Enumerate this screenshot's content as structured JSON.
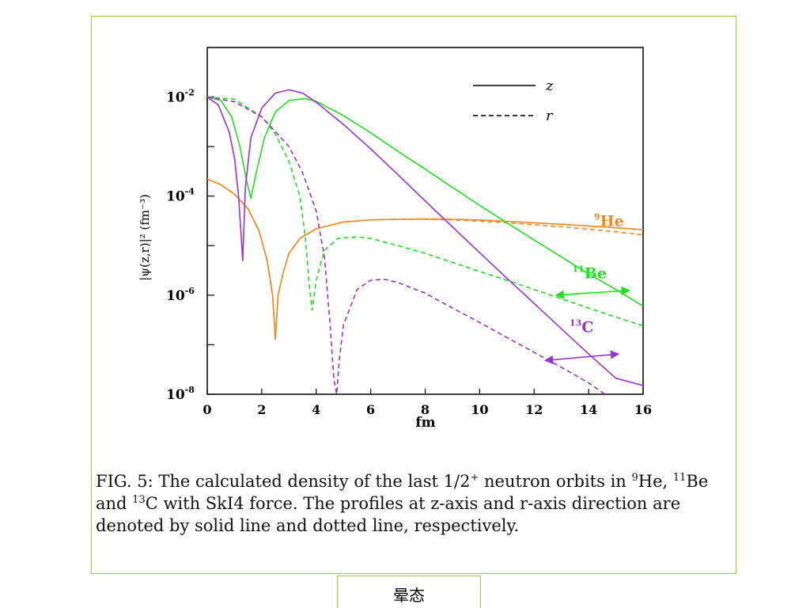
{
  "caption": {
    "prefix": "FIG. 5: The calculated density of the last 1/2",
    "sup_plus": "+",
    "mid1": " neutron orbits in ",
    "he_mass": "9",
    "he_el": "He, ",
    "be_mass": "11",
    "be_el": "Be and ",
    "c_mass": "13",
    "c_el": "C with SkI4 force. The profiles at z-axis and r-axis direction are denoted by solid line and dotted line, respectively."
  },
  "bottom_label": "晕态",
  "colors": {
    "He": "#ee8822",
    "Be": "#22dd22",
    "C": "#9933cc",
    "frame": "#99cc33"
  },
  "chart_data": {
    "type": "line",
    "xlabel": "fm",
    "ylabel": "|ψ(z,r)|² (fm⁻³)",
    "xlim": [
      0,
      16
    ],
    "ylim": [
      1e-08,
      0.1
    ],
    "yscale": "log",
    "xticks": [
      "0",
      "2",
      "4",
      "6",
      "8",
      "10",
      "12",
      "14",
      "16"
    ],
    "yticks": [
      {
        "base": "10",
        "exp": "-8",
        "value": 1e-08
      },
      {
        "base": "10",
        "exp": "-6",
        "value": 1e-06
      },
      {
        "base": "10",
        "exp": "-4",
        "value": 0.0001
      },
      {
        "base": "10",
        "exp": "-2",
        "value": 0.01
      }
    ],
    "legend": [
      {
        "label": "z",
        "style": "solid"
      },
      {
        "label": "r",
        "style": "dashed"
      }
    ],
    "legend_position": "top-right",
    "annotations": [
      {
        "mass": "9",
        "element": "He",
        "color": "He",
        "x": 14.2,
        "y": 2.5e-05
      },
      {
        "mass": "11",
        "element": "Be",
        "color": "Be",
        "x": 13.4,
        "y": 2.2e-06
      },
      {
        "mass": "13",
        "element": "C",
        "color": "C",
        "x": 13.3,
        "y": 1.8e-07
      }
    ],
    "arrows": [
      {
        "color": "Be",
        "x1": 12.8,
        "y1": 1e-06,
        "x2": 15.5,
        "y2": 1.25e-06
      },
      {
        "color": "C",
        "x1": 12.4,
        "y1": 4.8e-08,
        "x2": 15.1,
        "y2": 6.5e-08
      }
    ],
    "series": [
      {
        "color": "He",
        "style": "solid",
        "points": [
          [
            0,
            0.00022
          ],
          [
            0.5,
            0.00017
          ],
          [
            1.0,
            0.00011
          ],
          [
            1.5,
            5.5e-05
          ],
          [
            1.9,
            2e-05
          ],
          [
            2.2,
            5e-06
          ],
          [
            2.4,
            1e-06
          ],
          [
            2.5,
            1.3e-07
          ],
          [
            2.6,
            1e-06
          ],
          [
            2.8,
            3e-06
          ],
          [
            3.0,
            7e-06
          ],
          [
            3.4,
            1.4e-05
          ],
          [
            4.0,
            2.2e-05
          ],
          [
            5.0,
            3e-05
          ],
          [
            6.0,
            3.3e-05
          ],
          [
            7.0,
            3.4e-05
          ],
          [
            8.0,
            3.45e-05
          ],
          [
            9.0,
            3.4e-05
          ],
          [
            10,
            3.3e-05
          ],
          [
            11,
            3.1e-05
          ],
          [
            12,
            2.9e-05
          ],
          [
            13,
            2.7e-05
          ],
          [
            14,
            2.5e-05
          ],
          [
            15,
            2.3e-05
          ],
          [
            16,
            2.1e-05
          ]
        ]
      },
      {
        "color": "He",
        "style": "dashed",
        "points": [
          [
            0,
            0.00022
          ],
          [
            0.5,
            0.00017
          ],
          [
            1.0,
            0.00011
          ],
          [
            1.5,
            5.5e-05
          ],
          [
            1.9,
            2e-05
          ],
          [
            2.2,
            5e-06
          ],
          [
            2.4,
            1e-06
          ],
          [
            2.5,
            1.3e-07
          ],
          [
            2.6,
            1e-06
          ],
          [
            2.8,
            3e-06
          ],
          [
            3.0,
            7e-06
          ],
          [
            3.4,
            1.4e-05
          ],
          [
            4.0,
            2.2e-05
          ],
          [
            5.0,
            3e-05
          ],
          [
            6.0,
            3.3e-05
          ],
          [
            7.0,
            3.4e-05
          ],
          [
            8.0,
            3.4e-05
          ],
          [
            9.0,
            3.3e-05
          ],
          [
            10,
            3.1e-05
          ],
          [
            11,
            2.9e-05
          ],
          [
            12,
            2.65e-05
          ],
          [
            13,
            2.4e-05
          ],
          [
            14,
            2.15e-05
          ],
          [
            15,
            1.9e-05
          ],
          [
            16,
            1.65e-05
          ]
        ]
      },
      {
        "color": "Be",
        "style": "solid",
        "points": [
          [
            0,
            0.01
          ],
          [
            0.5,
            0.0085
          ],
          [
            0.9,
            0.004
          ],
          [
            1.2,
            0.001
          ],
          [
            1.45,
            0.0002
          ],
          [
            1.6,
            9e-05
          ],
          [
            1.8,
            0.0003
          ],
          [
            2.1,
            0.0015
          ],
          [
            2.5,
            0.005
          ],
          [
            3.0,
            0.0085
          ],
          [
            3.6,
            0.0093
          ],
          [
            4.0,
            0.0082
          ],
          [
            5.0,
            0.0042
          ],
          [
            6.0,
            0.0019
          ],
          [
            7.0,
            0.0008
          ],
          [
            8.0,
            0.00035
          ],
          [
            9.0,
            0.00015
          ],
          [
            10,
            6.5e-05
          ],
          [
            11,
            2.9e-05
          ],
          [
            12,
            1.3e-05
          ],
          [
            13,
            5.9e-06
          ],
          [
            14,
            2.7e-06
          ],
          [
            15,
            1.3e-06
          ],
          [
            16,
            6e-07
          ]
        ]
      },
      {
        "color": "Be",
        "style": "dashed",
        "points": [
          [
            0,
            0.01
          ],
          [
            1.0,
            0.009
          ],
          [
            2.0,
            0.004
          ],
          [
            2.5,
            0.0018
          ],
          [
            3.0,
            0.0005
          ],
          [
            3.4,
            0.0001
          ],
          [
            3.6,
            1.5e-05
          ],
          [
            3.75,
            1.5e-06
          ],
          [
            3.85,
            5e-07
          ],
          [
            4.0,
            2e-06
          ],
          [
            4.3,
            8e-06
          ],
          [
            4.8,
            1.4e-05
          ],
          [
            5.5,
            1.5e-05
          ],
          [
            6.0,
            1.4e-05
          ],
          [
            7.0,
            1e-05
          ],
          [
            8.0,
            7e-06
          ],
          [
            9.0,
            4.6e-06
          ],
          [
            10,
            3e-06
          ],
          [
            11,
            2e-06
          ],
          [
            12,
            1.3e-06
          ],
          [
            13,
            8.5e-07
          ],
          [
            14,
            5.5e-07
          ],
          [
            15,
            3.6e-07
          ],
          [
            16,
            2.4e-07
          ]
        ]
      },
      {
        "color": "C",
        "style": "solid",
        "points": [
          [
            0,
            0.01
          ],
          [
            0.4,
            0.007
          ],
          [
            0.8,
            0.002
          ],
          [
            1.0,
            0.0006
          ],
          [
            1.15,
            0.0001
          ],
          [
            1.25,
            1.5e-05
          ],
          [
            1.3,
            5e-06
          ],
          [
            1.4,
            0.00015
          ],
          [
            1.6,
            0.0015
          ],
          [
            2.0,
            0.006
          ],
          [
            2.5,
            0.012
          ],
          [
            3.0,
            0.014
          ],
          [
            3.5,
            0.012
          ],
          [
            4.0,
            0.0078
          ],
          [
            5.0,
            0.0028
          ],
          [
            6.0,
            0.0009
          ],
          [
            7.0,
            0.00027
          ],
          [
            8.0,
            8e-05
          ],
          [
            9.0,
            2.4e-05
          ],
          [
            10,
            7.2e-06
          ],
          [
            11,
            2.2e-06
          ],
          [
            12,
            6.8e-07
          ],
          [
            13,
            2.1e-07
          ],
          [
            14,
            6.5e-08
          ],
          [
            15,
            2.1e-08
          ],
          [
            16,
            1.5e-08
          ]
        ]
      },
      {
        "color": "C",
        "style": "dashed",
        "points": [
          [
            0,
            0.01
          ],
          [
            1.0,
            0.008
          ],
          [
            2.0,
            0.004
          ],
          [
            3.0,
            0.001
          ],
          [
            3.5,
            0.0003
          ],
          [
            4.0,
            5e-05
          ],
          [
            4.3,
            6e-06
          ],
          [
            4.5,
            3e-07
          ],
          [
            4.65,
            2e-08
          ],
          [
            4.75,
            1e-08
          ],
          [
            4.85,
            5e-08
          ],
          [
            5.0,
            2.5e-07
          ],
          [
            5.5,
            1.3e-06
          ],
          [
            6.0,
            2e-06
          ],
          [
            6.5,
            2.1e-06
          ],
          [
            7.0,
            1.8e-06
          ],
          [
            8.0,
            1.1e-06
          ],
          [
            9.0,
            5.5e-07
          ],
          [
            10,
            2.8e-07
          ],
          [
            11,
            1.4e-07
          ],
          [
            12,
            7e-08
          ],
          [
            13,
            3.5e-08
          ],
          [
            14,
            1.7e-08
          ],
          [
            14.6,
            1e-08
          ]
        ]
      }
    ]
  }
}
